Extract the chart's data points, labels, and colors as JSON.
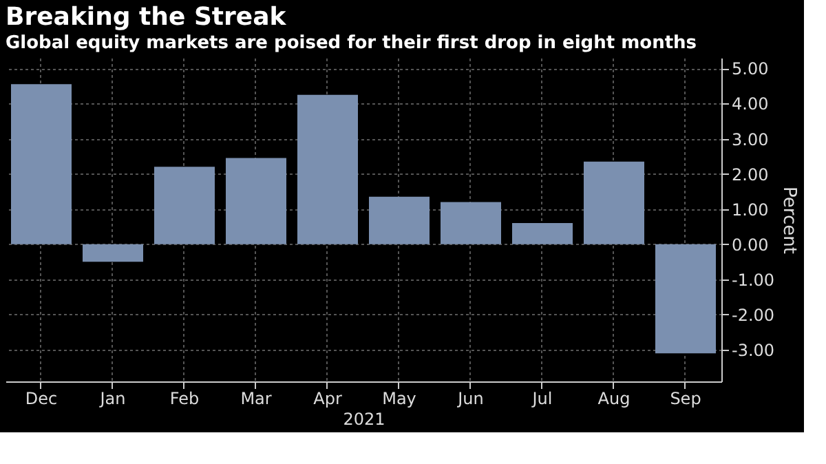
{
  "chart_data": {
    "type": "bar",
    "title": "Breaking the Streak",
    "subtitle": "Global equity markets are poised for their first drop in eight months",
    "xlabel": "2021",
    "ylabel": "Percent",
    "categories": [
      "Dec",
      "Jan",
      "Feb",
      "Mar",
      "Apr",
      "May",
      "Jun",
      "Jul",
      "Aug",
      "Sep"
    ],
    "series": [
      {
        "color": "#7b90b0",
        "values": [
          4.55,
          -0.5,
          2.2,
          2.45,
          4.25,
          1.35,
          1.2,
          0.6,
          2.35,
          -3.1
        ]
      }
    ],
    "ylim": [
      -3.9,
      5.3
    ],
    "yticks": [
      {
        "value": 5,
        "label": "5.00"
      },
      {
        "value": 4,
        "label": "4.00"
      },
      {
        "value": 3,
        "label": "3.00"
      },
      {
        "value": 2,
        "label": "2.00"
      },
      {
        "value": 1,
        "label": "1.00"
      },
      {
        "value": 0,
        "label": "0.00"
      },
      {
        "value": -1,
        "label": "-1.00"
      },
      {
        "value": -2,
        "label": "-2.00"
      },
      {
        "value": -3,
        "label": "-3.00"
      }
    ],
    "grid": true
  }
}
